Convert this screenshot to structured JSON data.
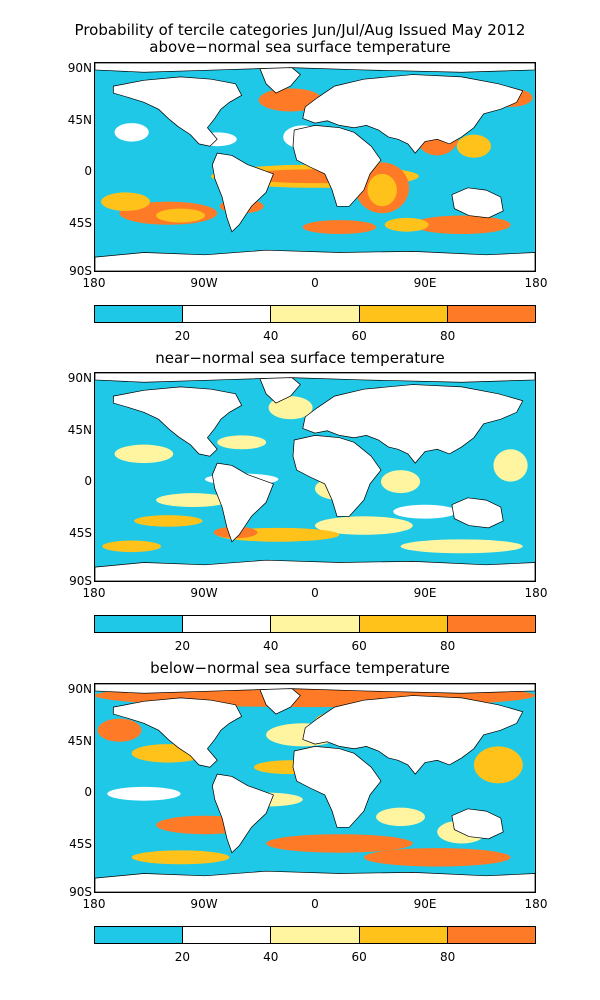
{
  "header": {
    "title_line1": "Probability of tercile categories Jun/Jul/Aug Issued May 2012"
  },
  "panels": [
    {
      "subtitle": "above−normal sea surface temperature"
    },
    {
      "subtitle": "near−normal sea surface temperature"
    },
    {
      "subtitle": "below−normal sea surface temperature"
    }
  ],
  "axes": {
    "lat_labels": [
      "90N",
      "45N",
      "0",
      "45S",
      "90S"
    ],
    "lon_labels": [
      "180",
      "90W",
      "0",
      "90E",
      "180"
    ]
  },
  "colorbar": {
    "colors": [
      "#1ec8e6",
      "#ffffff",
      "#fff5a0",
      "#ffc21a",
      "#ff7a26"
    ],
    "labels": [
      "20",
      "40",
      "60",
      "80"
    ]
  },
  "colors": {
    "ocean_low": "#1ec8e6",
    "land": "#ffffff",
    "yellow": "#fff5a0",
    "amber": "#ffc21a",
    "orange": "#ff7a26"
  }
}
